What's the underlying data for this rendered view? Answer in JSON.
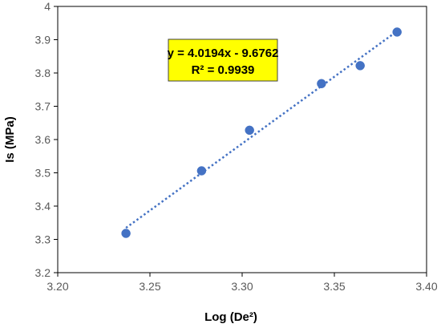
{
  "chart_data": {
    "type": "scatter",
    "xlabel": "Log (De²)",
    "ylabel": "Is (MPa)",
    "xlim": [
      3.2,
      3.4
    ],
    "ylim": [
      3.2,
      4.0
    ],
    "x_ticks": [
      "3.20",
      "3.25",
      "3.30",
      "3.35",
      "3.40"
    ],
    "y_ticks": [
      "3.2",
      "3.3",
      "3.4",
      "3.5",
      "3.6",
      "3.7",
      "3.8",
      "3.9",
      "4"
    ],
    "grid": false,
    "points": [
      {
        "x": 3.237,
        "y": 3.318
      },
      {
        "x": 3.278,
        "y": 3.506
      },
      {
        "x": 3.304,
        "y": 3.628
      },
      {
        "x": 3.343,
        "y": 3.768
      },
      {
        "x": 3.364,
        "y": 3.822
      },
      {
        "x": 3.384,
        "y": 3.923
      }
    ],
    "trendline": {
      "type": "linear",
      "style": "dotted",
      "slope": 4.0194,
      "intercept": -9.6762,
      "x_range": [
        3.237,
        3.384
      ],
      "equation_label": "y = 4.0194x - 9.6762",
      "r2_label": "R² = 0.9939"
    },
    "colors": {
      "marker": "#4472C4",
      "trendline": "#4472C4",
      "equation_box_fill": "#FFFF00",
      "equation_box_border": "#404040"
    }
  }
}
